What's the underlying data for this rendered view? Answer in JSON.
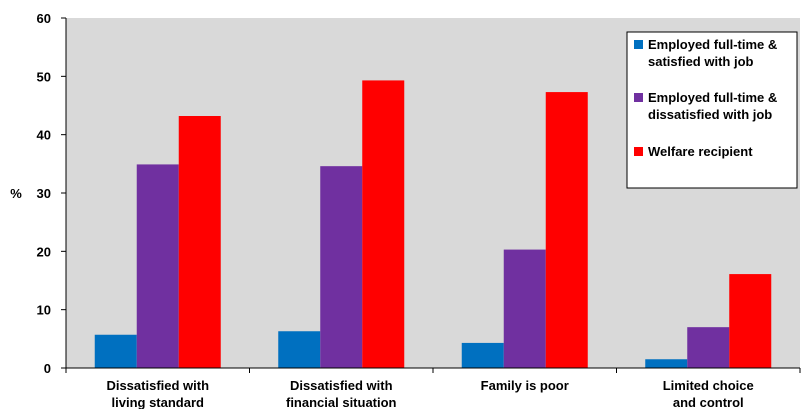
{
  "chart_data": {
    "type": "bar",
    "ylabel": "%",
    "xlabel": "",
    "ylim": [
      0,
      60
    ],
    "yticks": [
      "0",
      "10",
      "20",
      "30",
      "40",
      "50",
      "60"
    ],
    "grid": false,
    "legend_position": "top-right",
    "categories": [
      [
        "Dissatisfied with",
        "living standard"
      ],
      [
        "Dissatisfied with",
        "financial situation"
      ],
      [
        "Family is poor"
      ],
      [
        "Limited choice",
        "and control"
      ]
    ],
    "series": [
      {
        "name": [
          "Employed full-time &",
          "satisfied with job"
        ],
        "color": "#0070c0",
        "values": [
          5.7,
          6.3,
          4.3,
          1.5
        ]
      },
      {
        "name": [
          "Employed full-time &",
          "dissatisfied with job"
        ],
        "color": "#7030a0",
        "values": [
          34.9,
          34.6,
          20.3,
          7.0
        ]
      },
      {
        "name": [
          "Welfare recipient"
        ],
        "color": "#ff0000",
        "values": [
          43.2,
          49.3,
          47.3,
          16.1
        ]
      }
    ],
    "colors": {
      "plot_background": "#d9d9d9",
      "legend_background": "#ffffff"
    }
  }
}
